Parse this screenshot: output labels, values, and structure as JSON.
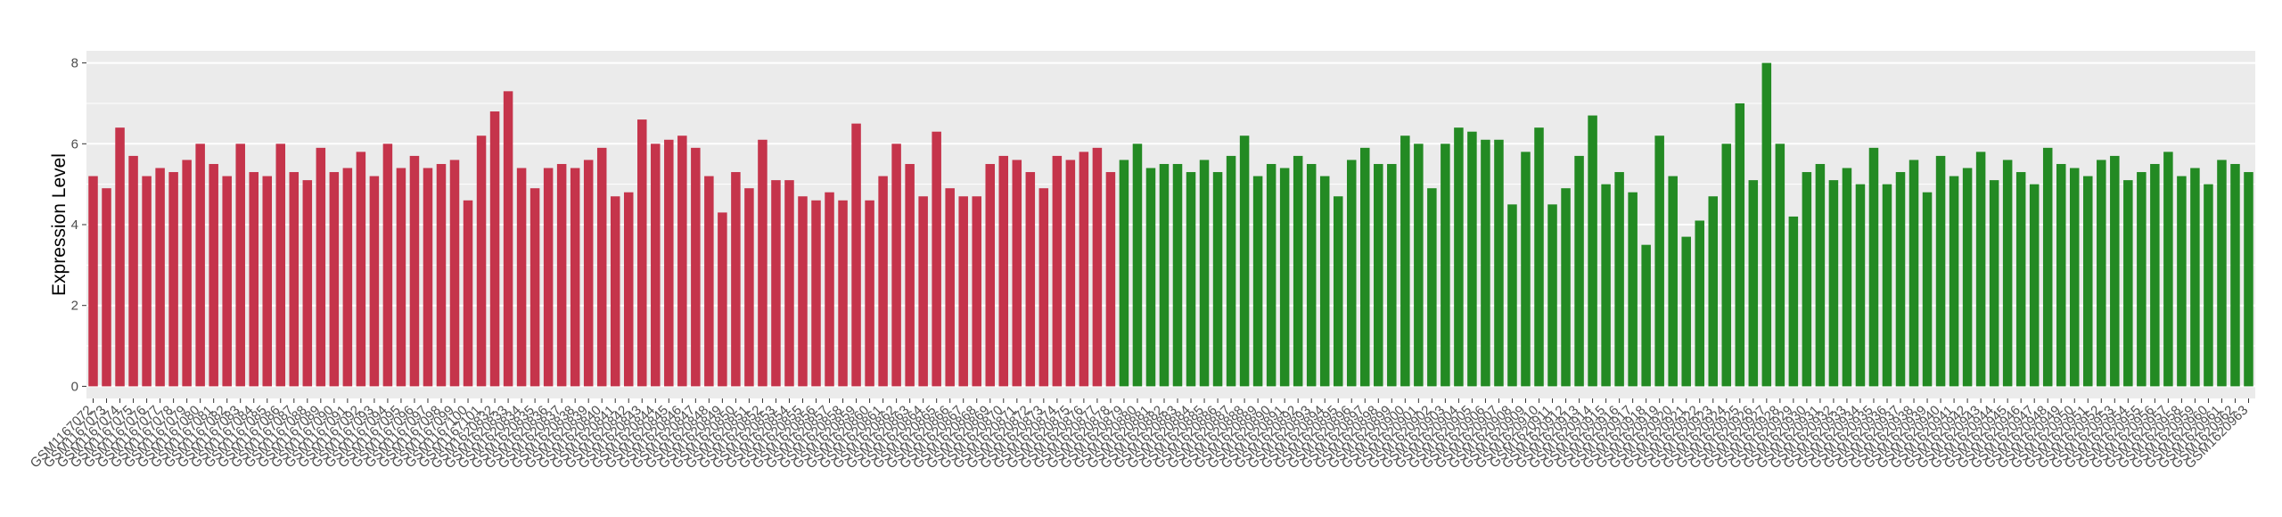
{
  "chart_data": {
    "type": "bar",
    "title": "",
    "xlabel": "",
    "ylabel": "Expression Level",
    "ylim": [
      -0.3,
      8.3
    ],
    "yticks": [
      0,
      2,
      4,
      6,
      8
    ],
    "grid": true,
    "legend": "none",
    "colors": {
      "group_1": "#c5344b",
      "group_2": "#238a23",
      "panel_background": "#ebebeb",
      "gridline": "#ffffff"
    },
    "categories": [
      "GSM1167072",
      "GSM1167073",
      "GSM1167074",
      "GSM1167075",
      "GSM1167076",
      "GSM1167077",
      "GSM1167078",
      "GSM1167079",
      "GSM1167080",
      "GSM1167081",
      "GSM1167082",
      "GSM1167083",
      "GSM1167084",
      "GSM1167085",
      "GSM1167086",
      "GSM1167087",
      "GSM1167088",
      "GSM1167089",
      "GSM1167090",
      "GSM1167091",
      "GSM1167092",
      "GSM1167093",
      "GSM1167094",
      "GSM1167095",
      "GSM1167096",
      "GSM1167097",
      "GSM1167098",
      "GSM1167099",
      "GSM1167100",
      "GSM1167101",
      "GSM1620832",
      "GSM1620833",
      "GSM1620834",
      "GSM1620835",
      "GSM1620836",
      "GSM1620837",
      "GSM1620838",
      "GSM1620839",
      "GSM1620840",
      "GSM1620841",
      "GSM1620842",
      "GSM1620843",
      "GSM1620844",
      "GSM1620845",
      "GSM1620846",
      "GSM1620847",
      "GSM1620848",
      "GSM1620849",
      "GSM1620850",
      "GSM1620851",
      "GSM1620852",
      "GSM1620853",
      "GSM1620854",
      "GSM1620855",
      "GSM1620856",
      "GSM1620857",
      "GSM1620858",
      "GSM1620859",
      "GSM1620860",
      "GSM1620861",
      "GSM1620862",
      "GSM1620863",
      "GSM1620864",
      "GSM1620865",
      "GSM1620866",
      "GSM1620867",
      "GSM1620868",
      "GSM1620869",
      "GSM1620870",
      "GSM1620871",
      "GSM1620872",
      "GSM1620873",
      "GSM1620874",
      "GSM1620875",
      "GSM1620876",
      "GSM1620877",
      "GSM1620878",
      "GSM1620879",
      "GSM1620880",
      "GSM1620881",
      "GSM1620882",
      "GSM1620883",
      "GSM1620884",
      "GSM1620885",
      "GSM1620886",
      "GSM1620887",
      "GSM1620888",
      "GSM1620889",
      "GSM1620890",
      "GSM1620891",
      "GSM1620892",
      "GSM1620893",
      "GSM1620894",
      "GSM1620895",
      "GSM1620896",
      "GSM1620897",
      "GSM1620898",
      "GSM1620899",
      "GSM1620900",
      "GSM1620901",
      "GSM1620902",
      "GSM1620903",
      "GSM1620904",
      "GSM1620905",
      "GSM1620906",
      "GSM1620907",
      "GSM1620908",
      "GSM1620909",
      "GSM1620910",
      "GSM1620911",
      "GSM1620912",
      "GSM1620913",
      "GSM1620914",
      "GSM1620915",
      "GSM1620916",
      "GSM1620917",
      "GSM1620918",
      "GSM1620919",
      "GSM1620920",
      "GSM1620921",
      "GSM1620922",
      "GSM1620923",
      "GSM1620924",
      "GSM1620925",
      "GSM1620926",
      "GSM1620927",
      "GSM1620928",
      "GSM1620929",
      "GSM1620930",
      "GSM1620931",
      "GSM1620932",
      "GSM1620933",
      "GSM1620934",
      "GSM1620935",
      "GSM1620936",
      "GSM1620937",
      "GSM1620938",
      "GSM1620939",
      "GSM1620940",
      "GSM1620941",
      "GSM1620942",
      "GSM1620943",
      "GSM1620944",
      "GSM1620945",
      "GSM1620946",
      "GSM1620947",
      "GSM1620948",
      "GSM1620949",
      "GSM1620950",
      "GSM1620951",
      "GSM1620952",
      "GSM1620953",
      "GSM1620954",
      "GSM1620955",
      "GSM1620956",
      "GSM1620957",
      "GSM1620958",
      "GSM1620959",
      "GSM1620960",
      "GSM1620961",
      "GSM1620962",
      "GSM1620963"
    ],
    "values": [
      5.2,
      4.9,
      6.4,
      5.7,
      5.2,
      5.4,
      5.3,
      5.6,
      6.0,
      5.5,
      5.2,
      6.0,
      5.3,
      5.2,
      6.0,
      5.3,
      5.1,
      5.9,
      5.3,
      5.4,
      5.8,
      5.2,
      6.0,
      5.4,
      5.7,
      5.4,
      5.5,
      5.6,
      4.6,
      6.2,
      6.8,
      7.3,
      5.4,
      4.9,
      5.4,
      5.5,
      5.4,
      5.6,
      5.9,
      4.7,
      4.8,
      6.6,
      6.0,
      6.1,
      6.2,
      5.9,
      5.2,
      4.3,
      5.3,
      4.9,
      6.1,
      5.1,
      5.1,
      4.7,
      4.6,
      4.8,
      4.6,
      6.5,
      4.6,
      5.2,
      6.0,
      5.5,
      4.7,
      6.3,
      4.9,
      4.7,
      4.7,
      5.5,
      5.7,
      5.6,
      5.3,
      4.9,
      5.7,
      5.6,
      5.8,
      5.9,
      5.3,
      5.6,
      6.0,
      5.4,
      5.5,
      5.5,
      5.3,
      5.6,
      5.3,
      5.7,
      6.2,
      5.2,
      5.5,
      5.4,
      5.7,
      5.5,
      5.2,
      4.7,
      5.6,
      5.9,
      5.5,
      5.5,
      6.2,
      6.0,
      4.9,
      6.0,
      6.4,
      6.3,
      6.1,
      6.1,
      4.5,
      5.8,
      6.4,
      4.5,
      4.9,
      5.7,
      6.7,
      5.0,
      5.3,
      4.8,
      3.5,
      6.2,
      5.2,
      3.7,
      4.1,
      4.7,
      6.0,
      7.0,
      5.1,
      8.0,
      6.0,
      4.2,
      5.3,
      5.5,
      5.1,
      5.4,
      5.0,
      5.9,
      5.0,
      5.3,
      5.6,
      4.8,
      5.7,
      5.2,
      5.4,
      5.8,
      5.1,
      5.6,
      5.3,
      5.0,
      5.9,
      5.5,
      5.4,
      5.2,
      5.6,
      5.7,
      5.1,
      5.3,
      5.5,
      5.8,
      5.2,
      5.4,
      5.0,
      5.6,
      5.5,
      5.3
    ],
    "group_split_index": 77
  }
}
